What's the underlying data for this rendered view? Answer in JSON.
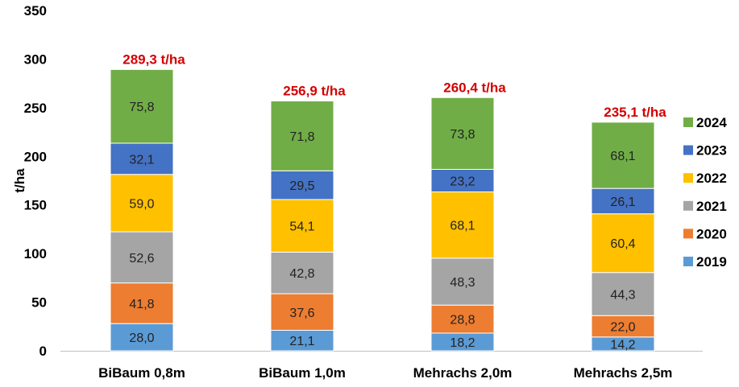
{
  "chart_data": {
    "type": "bar",
    "stacked": true,
    "title": "",
    "xlabel": "",
    "ylabel": "t/ha",
    "ylim": [
      0,
      350
    ],
    "yticks": [
      "0",
      "50",
      "100",
      "150",
      "200",
      "250",
      "300",
      "350"
    ],
    "categories": [
      "BiBaum 0,8m",
      "BiBaum 1,0m",
      "Mehrachs 2,0m",
      "Mehrachs 2,5m"
    ],
    "totals": [
      289.3,
      256.9,
      260.4,
      235.1
    ],
    "total_labels": [
      "289,3 t/ha",
      "256,9 t/ha",
      "260,4 t/ha",
      "235,1 t/ha"
    ],
    "series": [
      {
        "name": "2019",
        "color": "#5b9bd5",
        "values": [
          28.0,
          21.1,
          18.2,
          14.2
        ],
        "labels": [
          "28,0",
          "21,1",
          "18,2",
          "14,2"
        ]
      },
      {
        "name": "2020",
        "color": "#ed7d31",
        "values": [
          41.8,
          37.6,
          28.8,
          22.0
        ],
        "labels": [
          "41,8",
          "37,6",
          "28,8",
          "22,0"
        ]
      },
      {
        "name": "2021",
        "color": "#a5a5a5",
        "values": [
          52.6,
          42.8,
          48.3,
          44.3
        ],
        "labels": [
          "52,6",
          "42,8",
          "48,3",
          "44,3"
        ]
      },
      {
        "name": "2022",
        "color": "#ffc000",
        "values": [
          59.0,
          54.1,
          68.1,
          60.4
        ],
        "labels": [
          "59,0",
          "54,1",
          "68,1",
          "60,4"
        ]
      },
      {
        "name": "2023",
        "color": "#4472c4",
        "values": [
          32.1,
          29.5,
          23.2,
          26.1
        ],
        "labels": [
          "32,1",
          "29,5",
          "23,2",
          "26,1"
        ]
      },
      {
        "name": "2024",
        "color": "#70ad47",
        "values": [
          75.8,
          71.8,
          73.8,
          68.1
        ],
        "labels": [
          "75,8",
          "71,8",
          "73,8",
          "68,1"
        ]
      }
    ],
    "legend_position": "right",
    "grid": false
  }
}
